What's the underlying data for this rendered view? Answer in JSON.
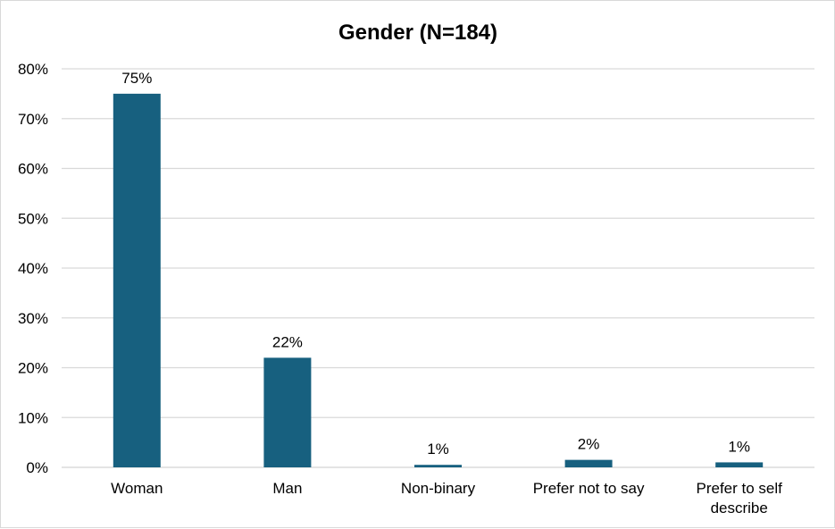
{
  "chart_data": {
    "type": "bar",
    "title": "Gender (N=184)",
    "xlabel": "",
    "ylabel": "",
    "categories": [
      "Woman",
      "Man",
      "Non-binary",
      "Prefer not to say",
      "Prefer to self describe"
    ],
    "values": [
      75,
      22,
      0.5,
      1.5,
      1
    ],
    "data_labels": [
      "75%",
      "22%",
      "1%",
      "2%",
      "1%"
    ],
    "ylim": [
      0,
      80
    ],
    "y_ticks": [
      0,
      10,
      20,
      30,
      40,
      50,
      60,
      70,
      80
    ],
    "y_tick_format": "%",
    "grid": true,
    "legend": "none",
    "bar_color": "#17607f",
    "grid_color": "#d9d9d9"
  }
}
